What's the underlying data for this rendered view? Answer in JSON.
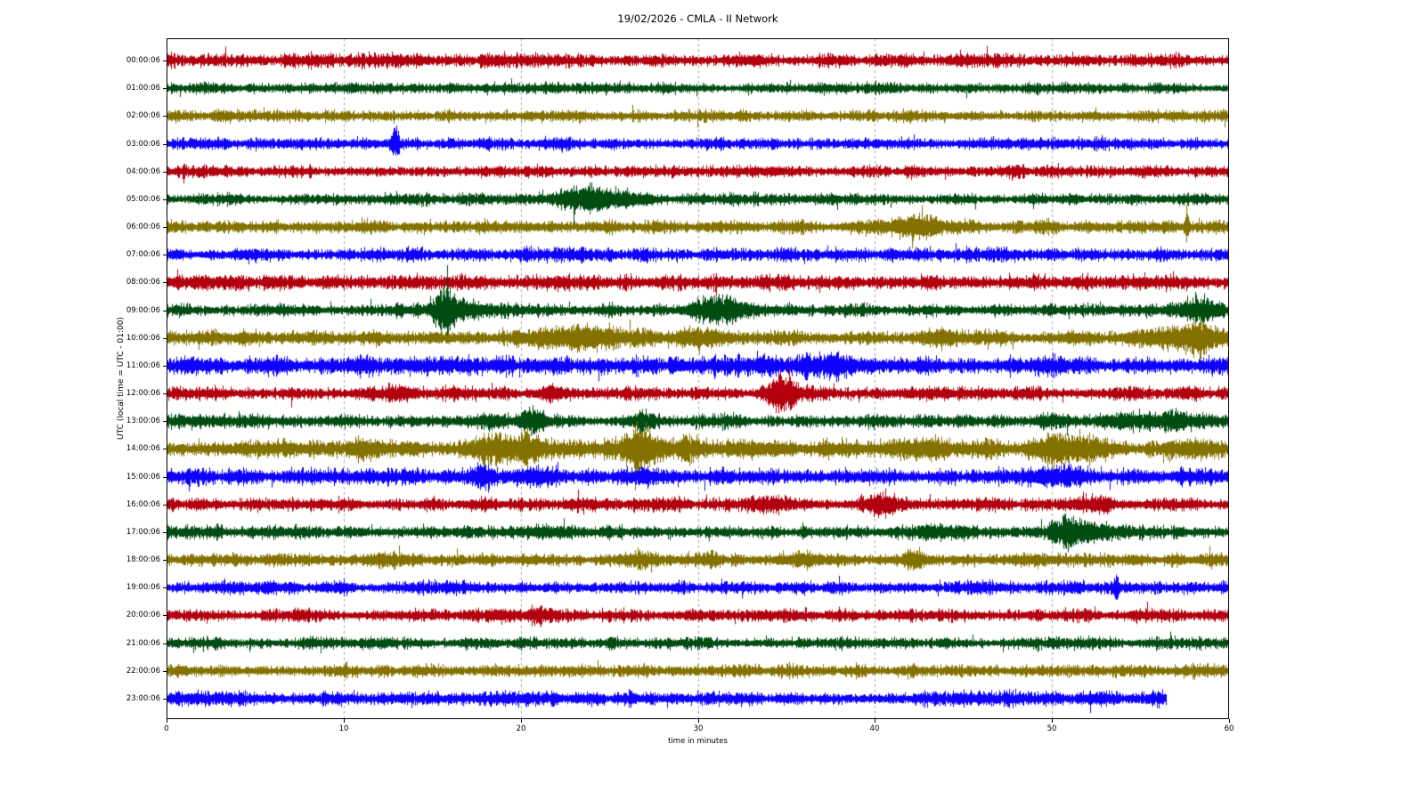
{
  "title": "19/02/2026 - CMLA - II Network",
  "chart_data": {
    "type": "line",
    "subtype": "seismogram-dayplot-helicorder",
    "title": "19/02/2026 - CMLA - II Network",
    "xlabel": "time in minutes",
    "ylabel": "UTC (local time = UTC - 01:00)",
    "xlim": [
      0,
      60
    ],
    "x_ticks": [
      0,
      10,
      20,
      30,
      40,
      50,
      60
    ],
    "grid": "vertical dashed gridlines every 10 minutes",
    "legend": "none",
    "trace_color_cycle": [
      "#B2000F",
      "#004C12",
      "#847200",
      "#0E01FF"
    ],
    "grid_color": "#aaaaaa",
    "rows": [
      {
        "label": "00:00:06",
        "color": "#B2000F",
        "base_amplitude": 9,
        "end_minute": 60,
        "events": []
      },
      {
        "label": "01:00:06",
        "color": "#004C12",
        "base_amplitude": 7.5,
        "end_minute": 60,
        "events": []
      },
      {
        "label": "02:00:06",
        "color": "#847200",
        "base_amplitude": 8,
        "end_minute": 60,
        "events": []
      },
      {
        "label": "03:00:06",
        "color": "#0E01FF",
        "base_amplitude": 8,
        "end_minute": 60,
        "events": [
          {
            "m": 12.9,
            "w": 0.15,
            "a": 24
          }
        ]
      },
      {
        "label": "04:00:06",
        "color": "#B2000F",
        "base_amplitude": 8,
        "end_minute": 60,
        "events": []
      },
      {
        "label": "05:00:06",
        "color": "#004C12",
        "base_amplitude": 8,
        "end_minute": 60,
        "events": [
          {
            "m": 23.3,
            "w": 0.9,
            "a": 15
          },
          {
            "m": 25.2,
            "w": 1.5,
            "a": 6
          }
        ]
      },
      {
        "label": "06:00:06",
        "color": "#847200",
        "base_amplitude": 9,
        "end_minute": 60,
        "events": [
          {
            "m": 42.3,
            "w": 1.1,
            "a": 14
          },
          {
            "m": 57.6,
            "w": 0.08,
            "a": 20
          }
        ]
      },
      {
        "label": "07:00:06",
        "color": "#0E01FF",
        "base_amplitude": 9.5,
        "end_minute": 60,
        "events": []
      },
      {
        "label": "08:00:06",
        "color": "#B2000F",
        "base_amplitude": 10,
        "end_minute": 60,
        "events": [
          {
            "m": 2.5,
            "w": 1.5,
            "a": 3
          }
        ]
      },
      {
        "label": "09:00:06",
        "color": "#004C12",
        "base_amplitude": 9,
        "end_minute": 60,
        "events": [
          {
            "m": 15.6,
            "w": 0.4,
            "a": 26
          },
          {
            "m": 16.8,
            "w": 1.0,
            "a": 8
          },
          {
            "m": 31.2,
            "w": 0.9,
            "a": 16
          },
          {
            "m": 58.5,
            "w": 0.7,
            "a": 15
          }
        ]
      },
      {
        "label": "10:00:06",
        "color": "#847200",
        "base_amplitude": 10,
        "end_minute": 60,
        "events": [
          {
            "m": 22.8,
            "w": 1.3,
            "a": 12
          },
          {
            "m": 25.2,
            "w": 1.5,
            "a": 6
          },
          {
            "m": 30.0,
            "w": 1.0,
            "a": 7
          },
          {
            "m": 44.0,
            "w": 1.0,
            "a": 4
          },
          {
            "m": 56.0,
            "w": 1.0,
            "a": 8
          },
          {
            "m": 58.3,
            "w": 0.7,
            "a": 20
          }
        ]
      },
      {
        "label": "11:00:06",
        "color": "#0E01FF",
        "base_amplitude": 12,
        "end_minute": 60,
        "events": [
          {
            "m": 11.0,
            "w": 0.8,
            "a": 5
          },
          {
            "m": 34.0,
            "w": 0.5,
            "a": 5
          },
          {
            "m": 37.5,
            "w": 1.5,
            "a": 6
          },
          {
            "m": 50.0,
            "w": 1.0,
            "a": 4
          }
        ]
      },
      {
        "label": "12:00:06",
        "color": "#B2000F",
        "base_amplitude": 9,
        "end_minute": 60,
        "events": [
          {
            "m": 13.0,
            "w": 0.6,
            "a": 4
          },
          {
            "m": 21.5,
            "w": 0.5,
            "a": 5
          },
          {
            "m": 34.8,
            "w": 0.55,
            "a": 21
          }
        ]
      },
      {
        "label": "13:00:06",
        "color": "#004C12",
        "base_amplitude": 9,
        "end_minute": 60,
        "events": [
          {
            "m": 18.5,
            "w": 0.5,
            "a": 6
          },
          {
            "m": 20.7,
            "w": 0.45,
            "a": 13
          },
          {
            "m": 26.9,
            "w": 0.4,
            "a": 11
          },
          {
            "m": 50.0,
            "w": 0.8,
            "a": 5
          },
          {
            "m": 54.5,
            "w": 1.2,
            "a": 7
          },
          {
            "m": 57.0,
            "w": 0.8,
            "a": 6
          }
        ]
      },
      {
        "label": "14:00:06",
        "color": "#847200",
        "base_amplitude": 12,
        "end_minute": 60,
        "events": [
          {
            "m": 11.5,
            "w": 0.9,
            "a": 8
          },
          {
            "m": 18.3,
            "w": 0.8,
            "a": 16
          },
          {
            "m": 20.3,
            "w": 0.5,
            "a": 14
          },
          {
            "m": 26.8,
            "w": 0.6,
            "a": 30
          },
          {
            "m": 29.3,
            "w": 0.5,
            "a": 12
          },
          {
            "m": 33.0,
            "w": 1.0,
            "a": 6
          },
          {
            "m": 43.0,
            "w": 1.2,
            "a": 6
          },
          {
            "m": 50.3,
            "w": 0.8,
            "a": 16
          },
          {
            "m": 52.3,
            "w": 0.7,
            "a": 12
          },
          {
            "m": 58.0,
            "w": 0.6,
            "a": 8
          }
        ]
      },
      {
        "label": "15:00:06",
        "color": "#0E01FF",
        "base_amplitude": 11,
        "end_minute": 60,
        "events": [
          {
            "m": 17.7,
            "w": 0.5,
            "a": 11
          },
          {
            "m": 21.0,
            "w": 0.8,
            "a": 5
          },
          {
            "m": 26.9,
            "w": 0.3,
            "a": 9
          },
          {
            "m": 50.5,
            "w": 1.0,
            "a": 6
          }
        ]
      },
      {
        "label": "16:00:06",
        "color": "#B2000F",
        "base_amplitude": 9,
        "end_minute": 60,
        "events": [
          {
            "m": 34.0,
            "w": 0.8,
            "a": 4
          },
          {
            "m": 40.3,
            "w": 0.7,
            "a": 11
          },
          {
            "m": 52.0,
            "w": 1.0,
            "a": 4
          }
        ]
      },
      {
        "label": "17:00:06",
        "color": "#004C12",
        "base_amplitude": 9,
        "end_minute": 60,
        "events": [
          {
            "m": 21.5,
            "w": 1.0,
            "a": 5
          },
          {
            "m": 44.0,
            "w": 1.0,
            "a": 4
          },
          {
            "m": 50.7,
            "w": 0.55,
            "a": 19
          },
          {
            "m": 52.6,
            "w": 0.8,
            "a": 9
          }
        ]
      },
      {
        "label": "18:00:06",
        "color": "#847200",
        "base_amplitude": 9,
        "end_minute": 60,
        "events": [
          {
            "m": 13.0,
            "w": 0.9,
            "a": 6
          },
          {
            "m": 26.8,
            "w": 0.6,
            "a": 8
          },
          {
            "m": 30.8,
            "w": 0.3,
            "a": 9
          },
          {
            "m": 36.0,
            "w": 1.0,
            "a": 4
          },
          {
            "m": 42.2,
            "w": 0.4,
            "a": 9
          }
        ]
      },
      {
        "label": "19:00:06",
        "color": "#0E01FF",
        "base_amplitude": 9,
        "end_minute": 60,
        "events": [
          {
            "m": 53.6,
            "w": 0.1,
            "a": 18
          }
        ]
      },
      {
        "label": "20:00:06",
        "color": "#B2000F",
        "base_amplitude": 8.5,
        "end_minute": 60,
        "events": [
          {
            "m": 18.0,
            "w": 0.8,
            "a": 4
          },
          {
            "m": 21.0,
            "w": 0.6,
            "a": 8
          }
        ]
      },
      {
        "label": "21:00:06",
        "color": "#004C12",
        "base_amplitude": 8,
        "end_minute": 60,
        "events": []
      },
      {
        "label": "22:00:06",
        "color": "#847200",
        "base_amplitude": 8.5,
        "end_minute": 60,
        "events": []
      },
      {
        "label": "23:00:06",
        "color": "#0E01FF",
        "base_amplitude": 9.5,
        "end_minute": 56.5,
        "events": []
      }
    ]
  }
}
